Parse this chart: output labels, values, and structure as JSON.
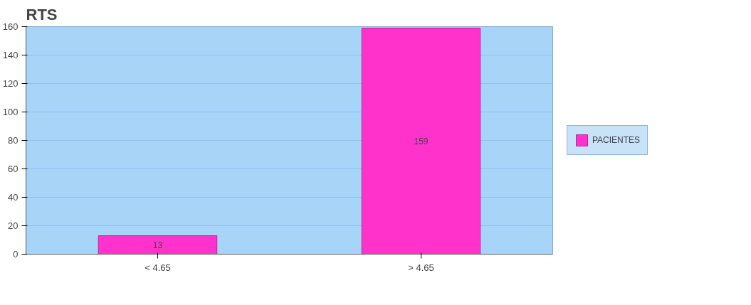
{
  "chart_data": {
    "type": "bar",
    "title": "RTS",
    "categories": [
      "< 4.65",
      "> 4.65"
    ],
    "series": [
      {
        "name": "PACIENTES",
        "color": "#ff33cc",
        "values": [
          13,
          159
        ]
      }
    ],
    "ylim": [
      0,
      160
    ],
    "yticks": [
      0,
      20,
      40,
      60,
      80,
      100,
      120,
      140,
      160
    ],
    "grid": "y",
    "legend": "right",
    "data_labels": true
  }
}
